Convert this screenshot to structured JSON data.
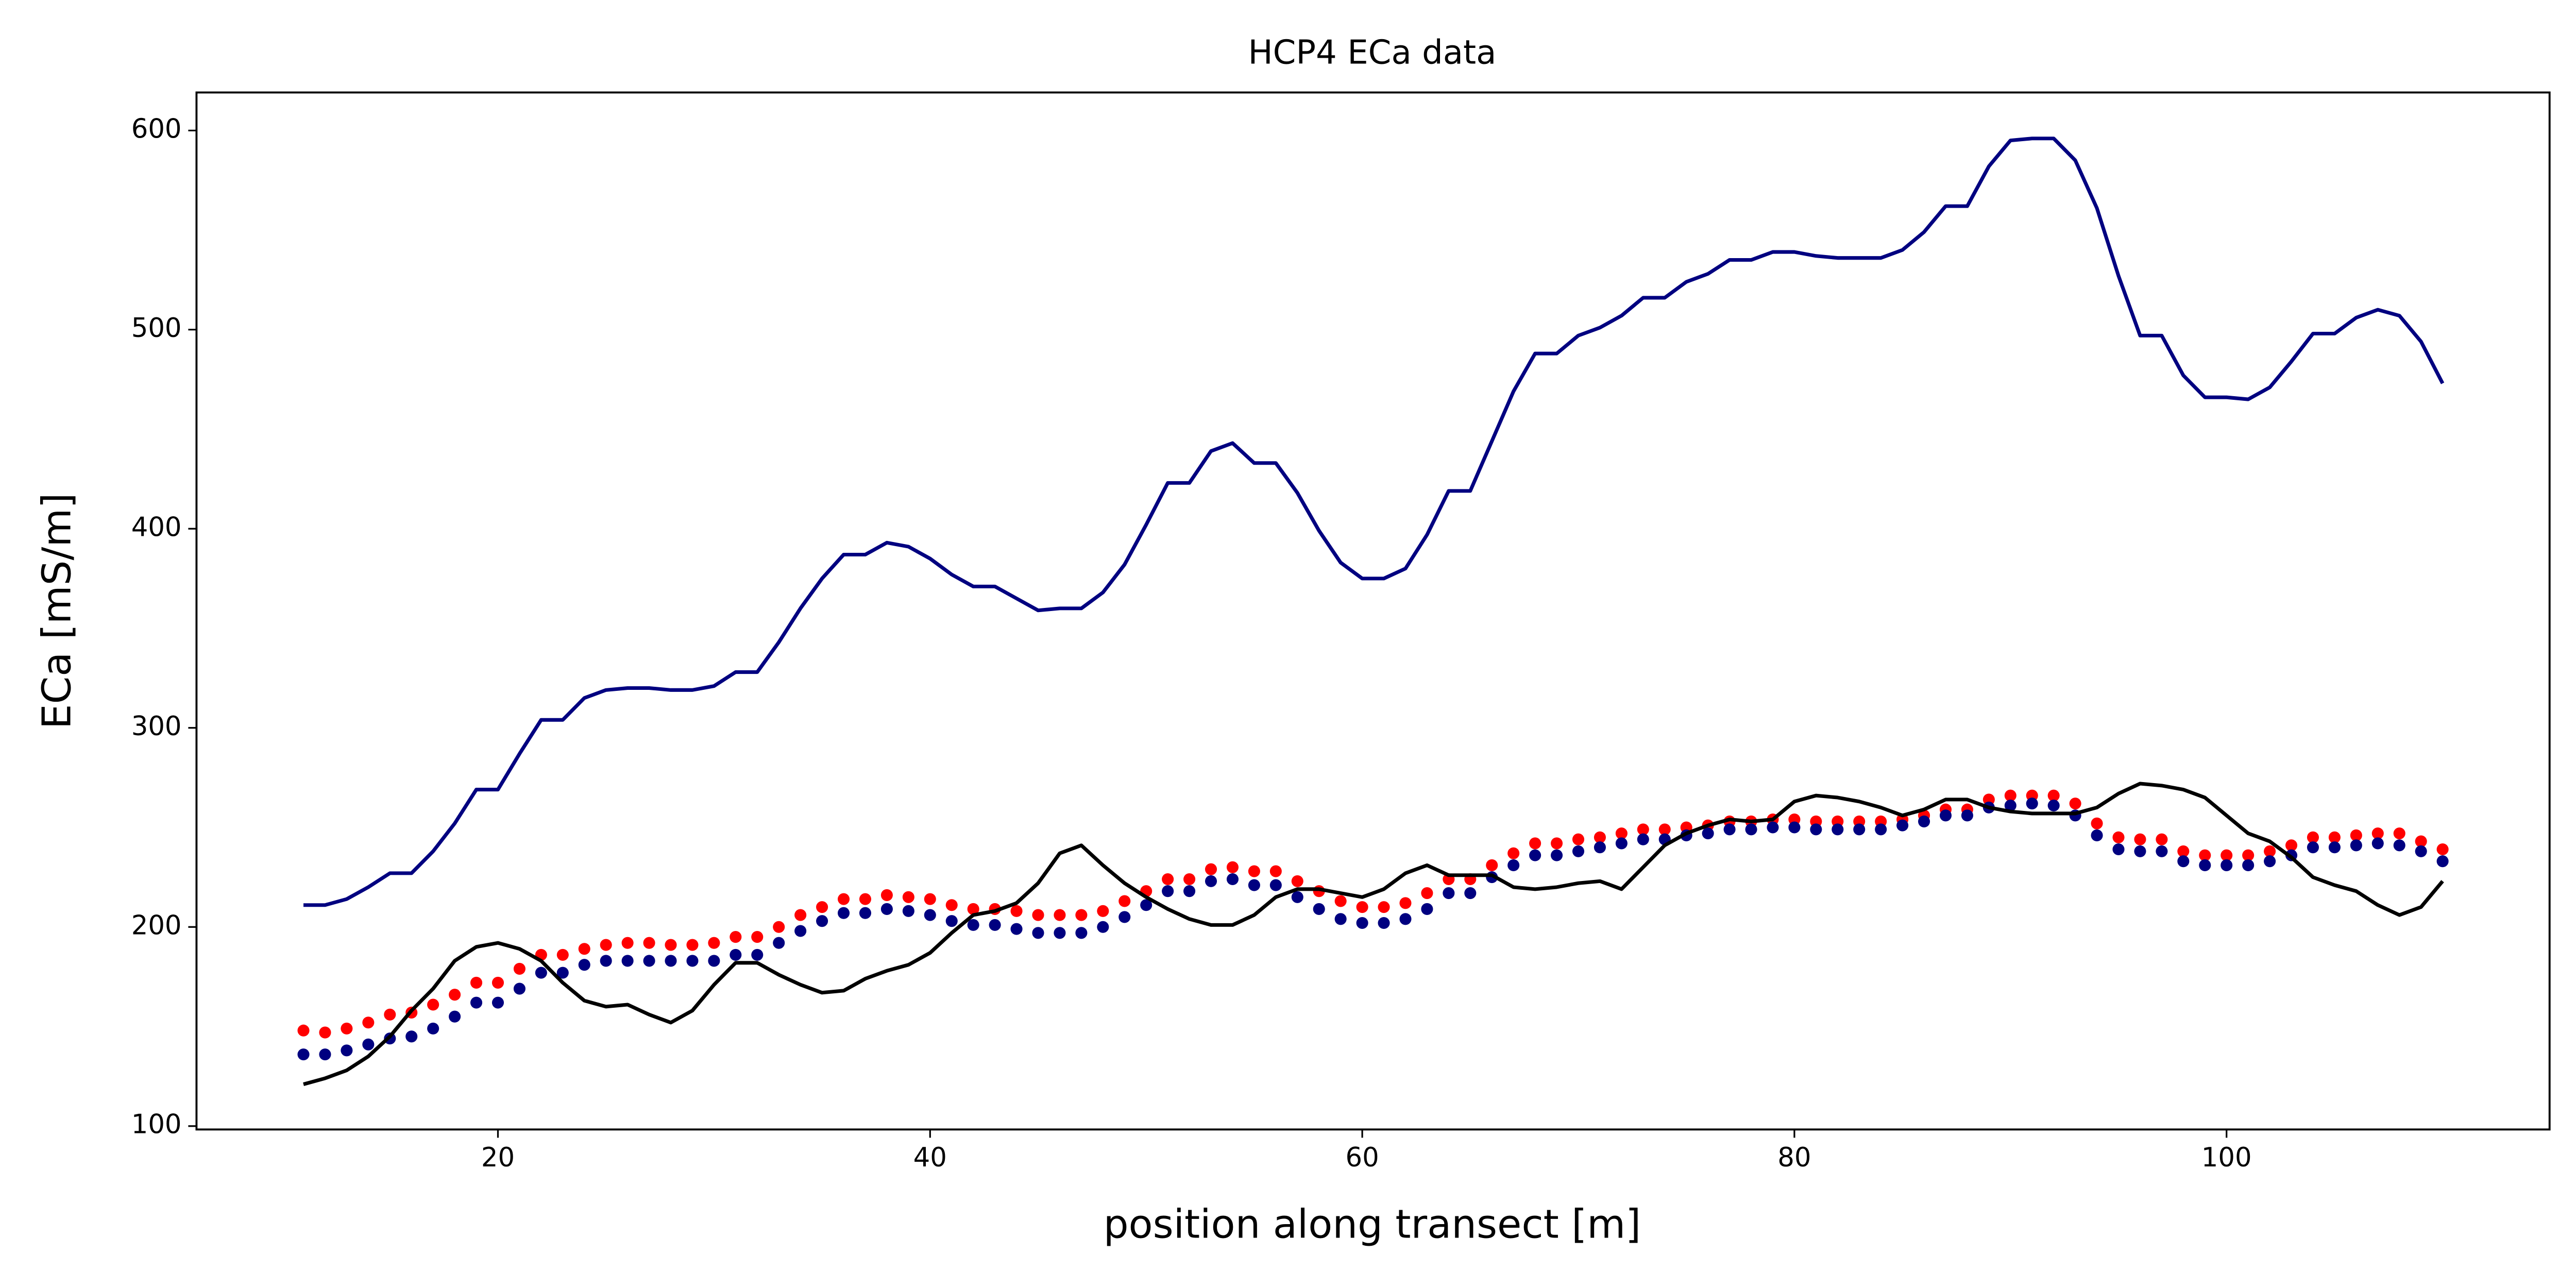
{
  "chart_data": {
    "type": "line",
    "title": "HCP4 ECa data",
    "xlabel": "position along transect [m]",
    "ylabel": "ECa [mS/m]",
    "x": [
      11,
      12,
      13,
      14,
      15,
      16,
      17,
      18,
      19,
      20,
      21,
      22,
      23,
      24,
      25,
      26,
      27,
      28,
      29,
      30,
      31,
      32,
      33,
      34,
      35,
      36,
      37,
      38,
      39,
      40,
      41,
      42,
      43,
      44,
      45,
      46,
      47,
      48,
      49,
      50,
      51,
      52,
      53,
      54,
      55,
      56,
      57,
      58,
      59,
      60,
      61,
      62,
      63,
      64,
      65,
      66,
      67,
      68,
      69,
      70,
      71,
      72,
      73,
      74,
      75,
      76,
      77,
      78,
      79,
      80,
      81,
      82,
      83,
      84,
      85,
      86,
      87,
      88,
      89,
      90,
      91,
      92,
      93,
      94,
      95,
      96,
      97,
      98,
      99,
      100,
      101,
      102,
      103,
      104,
      105,
      106,
      107,
      108,
      109,
      110
    ],
    "series": [
      {
        "color": "#000080",
        "style": "line",
        "values": [
          211,
          211,
          214,
          220,
          227,
          227,
          238,
          252,
          269,
          269,
          287,
          304,
          304,
          315,
          319,
          320,
          320,
          319,
          319,
          321,
          328,
          328,
          343,
          360,
          375,
          387,
          387,
          393,
          391,
          385,
          377,
          371,
          371,
          365,
          359,
          360,
          360,
          368,
          382,
          402,
          423,
          423,
          439,
          443,
          433,
          433,
          418,
          399,
          383,
          375,
          375,
          380,
          397,
          419,
          419,
          444,
          469,
          488,
          488,
          497,
          501,
          507,
          516,
          516,
          524,
          528,
          535,
          535,
          539,
          539,
          537,
          536,
          536,
          536,
          540,
          549,
          562,
          562,
          582,
          595,
          596,
          596,
          585,
          561,
          527,
          497,
          497,
          477,
          466,
          466,
          465,
          471,
          484,
          498,
          498,
          506,
          510,
          507,
          494,
          473
        ]
      },
      {
        "color": "#ff0000",
        "style": "dotted",
        "values": [
          148,
          147,
          149,
          152,
          156,
          157,
          161,
          166,
          172,
          172,
          179,
          186,
          186,
          189,
          191,
          192,
          192,
          191,
          191,
          192,
          195,
          195,
          200,
          206,
          210,
          214,
          214,
          216,
          215,
          214,
          211,
          209,
          209,
          208,
          206,
          206,
          206,
          208,
          213,
          218,
          224,
          224,
          229,
          230,
          228,
          228,
          223,
          218,
          213,
          210,
          210,
          212,
          217,
          224,
          224,
          231,
          237,
          242,
          242,
          244,
          245,
          247,
          249,
          249,
          250,
          251,
          253,
          253,
          254,
          254,
          253,
          253,
          253,
          253,
          254,
          256,
          259,
          259,
          264,
          266,
          266,
          266,
          262,
          252,
          245,
          244,
          244,
          238,
          236,
          236,
          236,
          238,
          241,
          245,
          245,
          246,
          247,
          247,
          243,
          239
        ]
      },
      {
        "color": "#000080",
        "style": "dotted",
        "values": [
          136,
          136,
          138,
          141,
          144,
          145,
          149,
          155,
          162,
          162,
          169,
          177,
          177,
          181,
          183,
          183,
          183,
          183,
          183,
          183,
          186,
          186,
          192,
          198,
          203,
          207,
          207,
          209,
          208,
          206,
          203,
          201,
          201,
          199,
          197,
          197,
          197,
          200,
          205,
          211,
          218,
          218,
          223,
          224,
          221,
          221,
          215,
          209,
          204,
          202,
          202,
          204,
          209,
          217,
          217,
          225,
          231,
          236,
          236,
          238,
          240,
          242,
          244,
          244,
          246,
          247,
          249,
          249,
          250,
          250,
          249,
          249,
          249,
          249,
          251,
          253,
          256,
          256,
          260,
          261,
          262,
          261,
          256,
          246,
          239,
          238,
          238,
          233,
          231,
          231,
          231,
          233,
          236,
          240,
          240,
          241,
          242,
          241,
          238,
          233
        ]
      },
      {
        "color": "#000000",
        "style": "line",
        "values": [
          121,
          124,
          128,
          135,
          145,
          158,
          169,
          183,
          190,
          192,
          189,
          183,
          172,
          163,
          160,
          161,
          156,
          152,
          158,
          171,
          182,
          182,
          176,
          171,
          167,
          168,
          174,
          178,
          181,
          187,
          197,
          206,
          208,
          212,
          222,
          237,
          241,
          231,
          222,
          215,
          209,
          204,
          201,
          201,
          206,
          215,
          219,
          219,
          217,
          215,
          219,
          227,
          231,
          226,
          226,
          226,
          220,
          219,
          220,
          222,
          223,
          219,
          230,
          241,
          247,
          251,
          254,
          253,
          254,
          263,
          266,
          265,
          263,
          260,
          256,
          259,
          264,
          264,
          260,
          258,
          257,
          257,
          257,
          260,
          267,
          272,
          271,
          269,
          265,
          256,
          247,
          243,
          235,
          225,
          221,
          218,
          211,
          206,
          210,
          223
        ]
      }
    ],
    "xlim": [
      6.05,
      114.95
    ],
    "xticks": [
      20,
      40,
      60,
      80,
      100
    ],
    "ylim": [
      98.3,
      619.1
    ],
    "yticks": [
      100,
      200,
      300,
      400,
      500,
      600
    ],
    "grid": false
  }
}
